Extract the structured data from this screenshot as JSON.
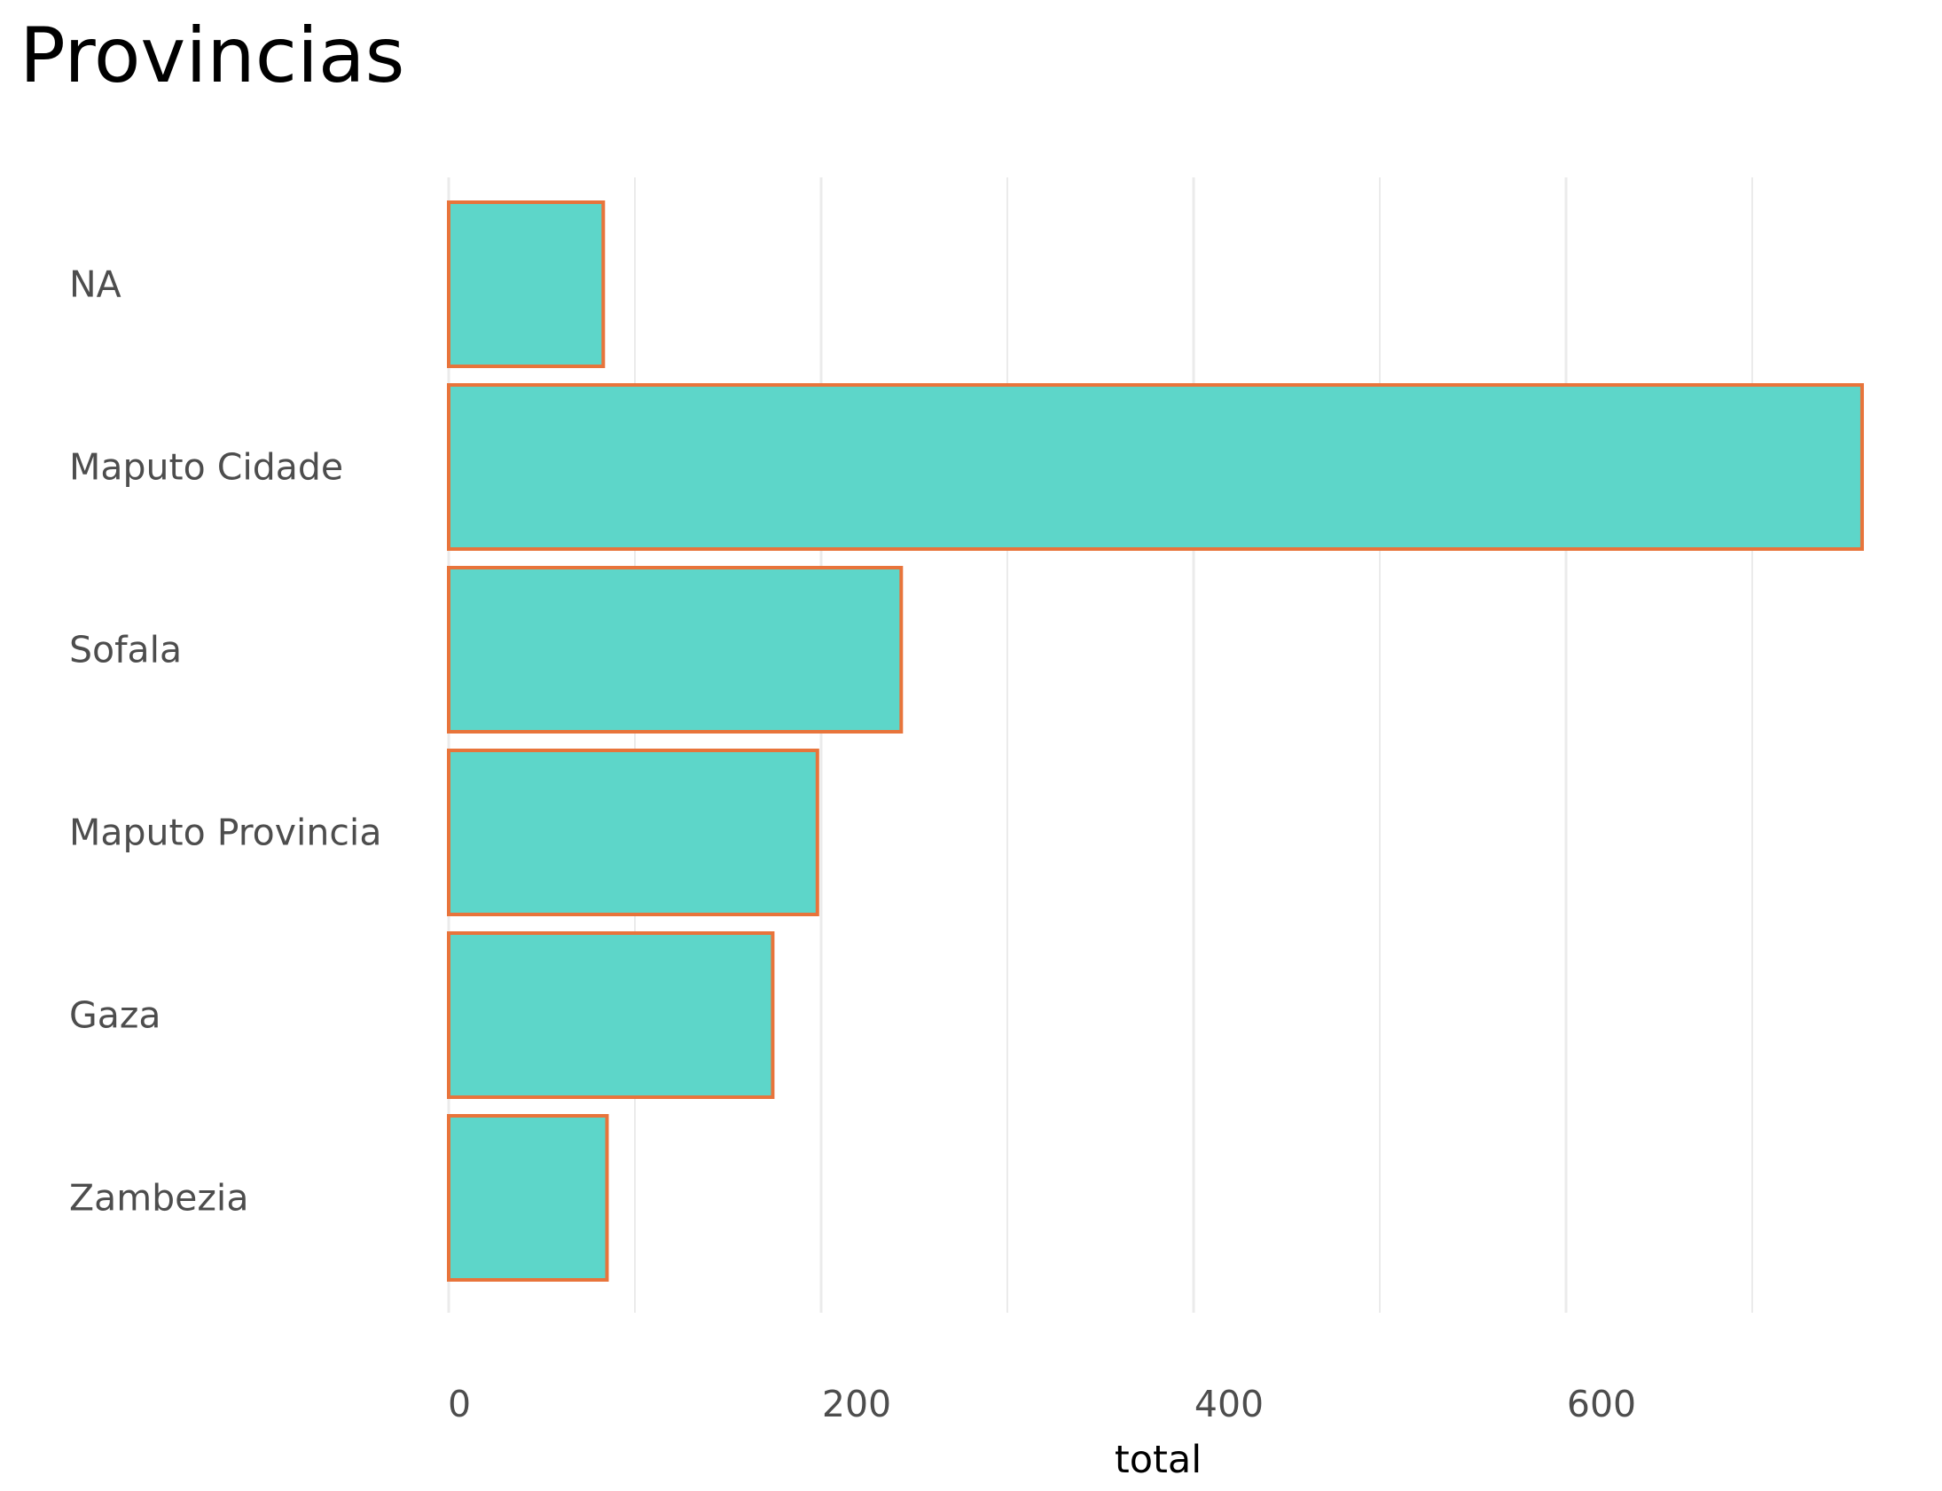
{
  "chart_data": {
    "type": "bar",
    "orientation": "horizontal",
    "title": "Provincias",
    "xlabel": "total",
    "ylabel": "",
    "categories": [
      "NA",
      "Maputo Cidade",
      "Sofala",
      "Maputo Provincia",
      "Gaza",
      "Zambezia"
    ],
    "values": [
      83,
      759,
      243,
      198,
      174,
      85
    ],
    "xlim": [
      0,
      759
    ],
    "xticks": [
      0,
      200,
      400,
      600
    ],
    "xtick_labels": [
      "0",
      "200",
      "400",
      "600"
    ],
    "grid": "vertical",
    "legend": "none",
    "colors": {
      "bar_fill": "#5dd6c9",
      "bar_stroke": "#e8743b",
      "grid": "#ebebeb",
      "text": "#4d4d4d",
      "title": "#000000"
    }
  }
}
